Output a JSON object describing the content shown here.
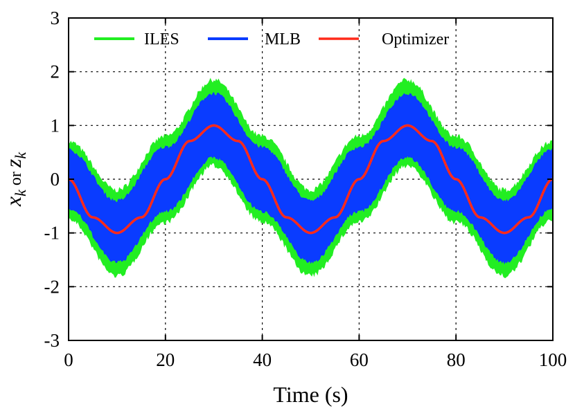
{
  "chart_data": {
    "type": "area",
    "xlabel": "Time (s)",
    "ylabel": {
      "x": "x",
      "x_sub": "k",
      "or": "or",
      "z": "z",
      "z_sub": "k"
    },
    "xlim": [
      0,
      100
    ],
    "ylim": [
      -3,
      3
    ],
    "xticks": [
      0,
      20,
      40,
      60,
      80,
      100
    ],
    "yticks": [
      3,
      2,
      1,
      0,
      -1,
      -2,
      -3
    ],
    "grid": true,
    "legend_position": "top",
    "series": [
      {
        "name": "ILES",
        "color": "#22ee22",
        "kind": "band",
        "center": "sin(2*pi*(t-10)/40 - pi/2)... see x/y",
        "x": [
          0,
          10,
          20,
          30,
          40,
          50,
          60,
          70,
          80,
          90,
          100
        ],
        "y_lower": [
          -0.75,
          -1.8,
          -0.8,
          0.25,
          -0.8,
          -1.8,
          -0.8,
          0.25,
          -0.8,
          -1.8,
          -0.75
        ],
        "y_upper": [
          0.7,
          -0.2,
          0.8,
          1.85,
          0.8,
          -0.2,
          0.8,
          1.85,
          0.8,
          -0.2,
          0.7
        ]
      },
      {
        "name": "MLB",
        "color": "#0a3cff",
        "kind": "band",
        "x": [
          0,
          10,
          20,
          30,
          40,
          50,
          60,
          70,
          80,
          90,
          100
        ],
        "y_lower": [
          -0.55,
          -1.55,
          -0.6,
          0.4,
          -0.6,
          -1.55,
          -0.6,
          0.4,
          -0.6,
          -1.55,
          -0.55
        ],
        "y_upper": [
          0.55,
          -0.4,
          0.6,
          1.6,
          0.6,
          -0.4,
          0.6,
          1.6,
          0.6,
          -0.4,
          0.55
        ]
      },
      {
        "name": "Optimizer",
        "color": "#ff2a1a",
        "kind": "line",
        "x": [
          0,
          5,
          10,
          15,
          20,
          25,
          30,
          35,
          40,
          45,
          50,
          55,
          60,
          65,
          70,
          75,
          80,
          85,
          90,
          95,
          100
        ],
        "y": [
          0,
          -0.71,
          -1,
          -0.71,
          0,
          0.71,
          1,
          0.71,
          0,
          -0.71,
          -1,
          -0.71,
          0,
          0.71,
          1,
          0.71,
          0,
          -0.71,
          -1,
          -0.71,
          0
        ]
      }
    ]
  }
}
